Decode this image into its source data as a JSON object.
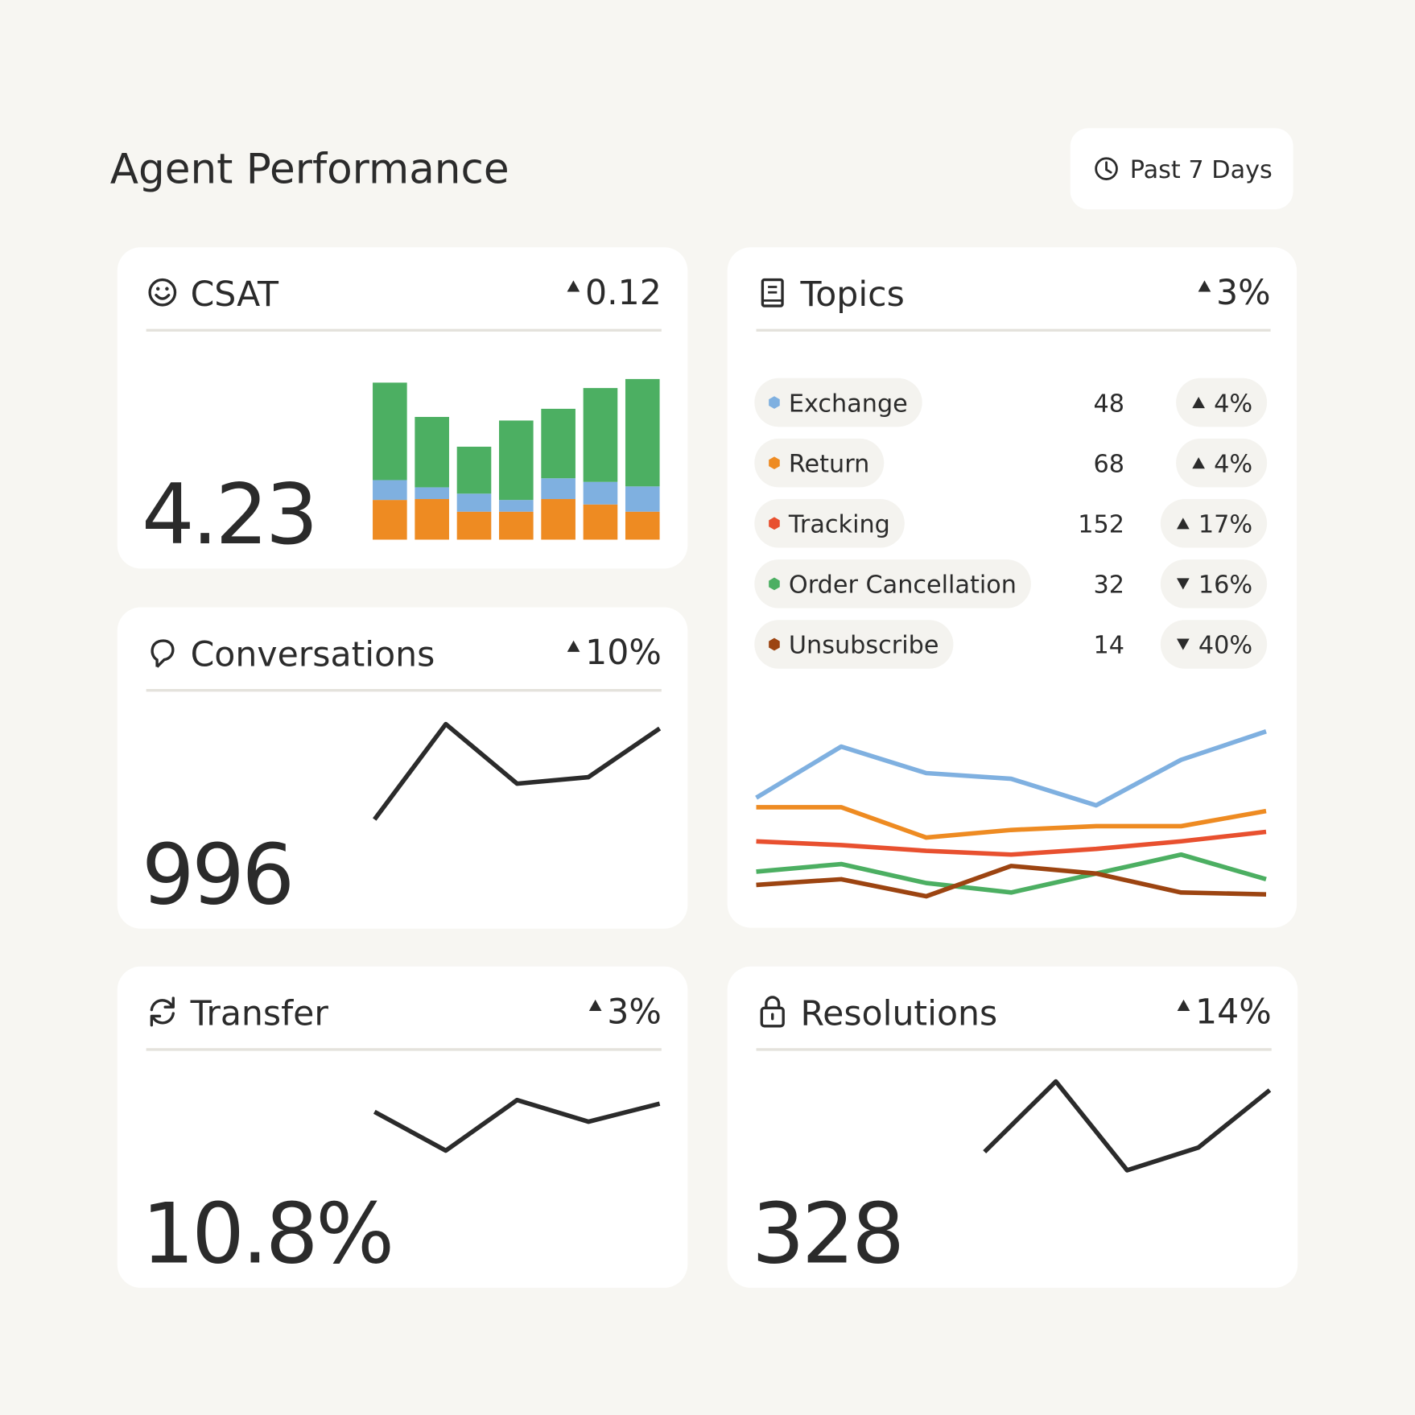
{
  "header": {
    "title": "Agent Performance",
    "range": "Past 7 Days"
  },
  "cards": [
    {
      "title": "CSAT",
      "delta": "0.12",
      "direction": "up",
      "value": "4.23",
      "chart": {
        "type": "stacked-bar",
        "ylim": [
          0,
          180
        ],
        "series": [
          {
            "color": "#ee8b22",
            "values": [
              44,
              45,
              31,
              31,
              45,
              39,
              31
            ]
          },
          {
            "color": "#7fb0e0",
            "values": [
              22,
              13,
              20,
              13,
              23,
              25,
              28
            ]
          },
          {
            "color": "#4caf62",
            "values": [
              108,
              78,
              52,
              88,
              77,
              104,
              119
            ]
          }
        ]
      }
    },
    {
      "title": "Conversations",
      "delta": "10%",
      "direction": "up",
      "value": "996",
      "chart": {
        "type": "line",
        "ylim": [
          0,
          100
        ],
        "color": "#2b2b2b",
        "values": [
          10,
          98,
          43,
          49,
          94
        ]
      }
    },
    {
      "title": "Transfer",
      "delta": "3%",
      "direction": "up",
      "value": "10.8%",
      "chart": {
        "type": "line",
        "ylim": [
          0,
          100
        ],
        "color": "#2b2b2b",
        "values": [
          58,
          15,
          71,
          47,
          67
        ]
      }
    },
    {
      "title": "Resolutions",
      "delta": "14%",
      "direction": "up",
      "value": "328",
      "chart": {
        "type": "line",
        "ylim": [
          0,
          100
        ],
        "color": "#2b2b2b",
        "values": [
          28,
          93,
          11,
          32,
          85
        ]
      }
    }
  ],
  "topics": {
    "title": "Topics",
    "delta": "3%",
    "direction": "up",
    "rows": [
      {
        "name": "Exchange",
        "count": 48,
        "delta": "4%",
        "direction": "up",
        "color": "#7fb0e0"
      },
      {
        "name": "Return",
        "count": 68,
        "delta": "4%",
        "direction": "up",
        "color": "#ee8b22"
      },
      {
        "name": "Tracking",
        "count": 152,
        "delta": "17%",
        "direction": "up",
        "color": "#e8502f"
      },
      {
        "name": "Order Cancellation",
        "count": 32,
        "delta": "16%",
        "direction": "down",
        "color": "#4caf62"
      },
      {
        "name": "Unsubscribe",
        "count": 14,
        "delta": "40%",
        "direction": "down",
        "color": "#9c4411"
      }
    ],
    "chart": {
      "type": "line",
      "ylim": [
        0,
        100
      ],
      "series": [
        {
          "color": "#7fb0e0",
          "values": [
            60,
            87,
            73,
            70,
            56,
            80,
            95
          ]
        },
        {
          "color": "#ee8b22",
          "values": [
            55,
            55,
            39,
            43,
            45,
            45,
            53
          ]
        },
        {
          "color": "#e8502f",
          "values": [
            37,
            35,
            32,
            30,
            33,
            37,
            42
          ]
        },
        {
          "color": "#4caf62",
          "values": [
            21,
            25,
            15,
            10,
            20,
            30,
            17
          ]
        },
        {
          "color": "#9c4411",
          "values": [
            14,
            17,
            8,
            24,
            20,
            10,
            9
          ]
        }
      ]
    }
  }
}
